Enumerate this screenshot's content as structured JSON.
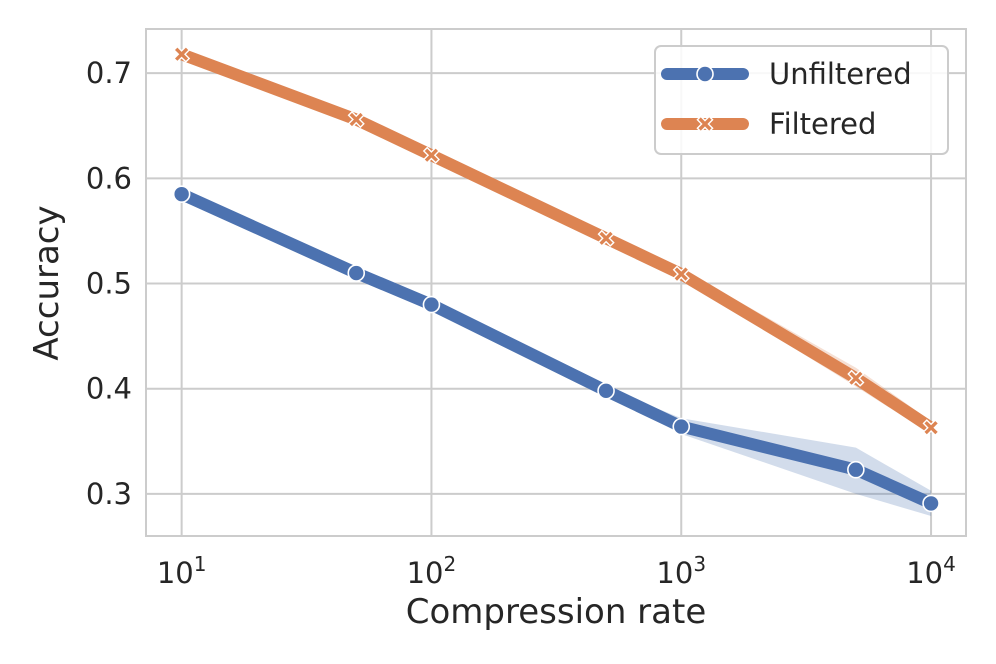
{
  "chart_data": {
    "type": "line",
    "xscale": "log",
    "xlabel": "Compression rate",
    "ylabel": "Accuracy",
    "xlim": [
      7.2,
      13800
    ],
    "ylim": [
      0.26,
      0.742
    ],
    "x_ticks": [
      {
        "value": 10,
        "base": "10",
        "exp": "1"
      },
      {
        "value": 100,
        "base": "10",
        "exp": "2"
      },
      {
        "value": 1000,
        "base": "10",
        "exp": "3"
      },
      {
        "value": 10000,
        "base": "10",
        "exp": "4"
      }
    ],
    "y_ticks": [
      {
        "value": 0.3,
        "label": "0.3"
      },
      {
        "value": 0.4,
        "label": "0.4"
      },
      {
        "value": 0.5,
        "label": "0.5"
      },
      {
        "value": 0.6,
        "label": "0.6"
      },
      {
        "value": 0.7,
        "label": "0.7"
      }
    ],
    "x": [
      10,
      50,
      100,
      500,
      1000,
      5000,
      10000
    ],
    "series": [
      {
        "name": "Unfiltered",
        "color": "#4c72b0",
        "marker": "circle",
        "values": [
          0.585,
          0.51,
          0.48,
          0.398,
          0.364,
          0.323,
          0.291
        ],
        "lower": [
          0.583,
          0.508,
          0.477,
          0.395,
          0.357,
          0.3,
          0.279
        ],
        "upper": [
          0.587,
          0.512,
          0.483,
          0.401,
          0.372,
          0.344,
          0.303
        ]
      },
      {
        "name": "Filtered",
        "color": "#dd8452",
        "marker": "x",
        "values": [
          0.718,
          0.656,
          0.622,
          0.543,
          0.509,
          0.41,
          0.363
        ],
        "lower": [
          0.716,
          0.654,
          0.62,
          0.54,
          0.505,
          0.402,
          0.357
        ],
        "upper": [
          0.72,
          0.658,
          0.624,
          0.546,
          0.514,
          0.42,
          0.369
        ]
      }
    ],
    "grid": true,
    "legend": "top-right"
  }
}
